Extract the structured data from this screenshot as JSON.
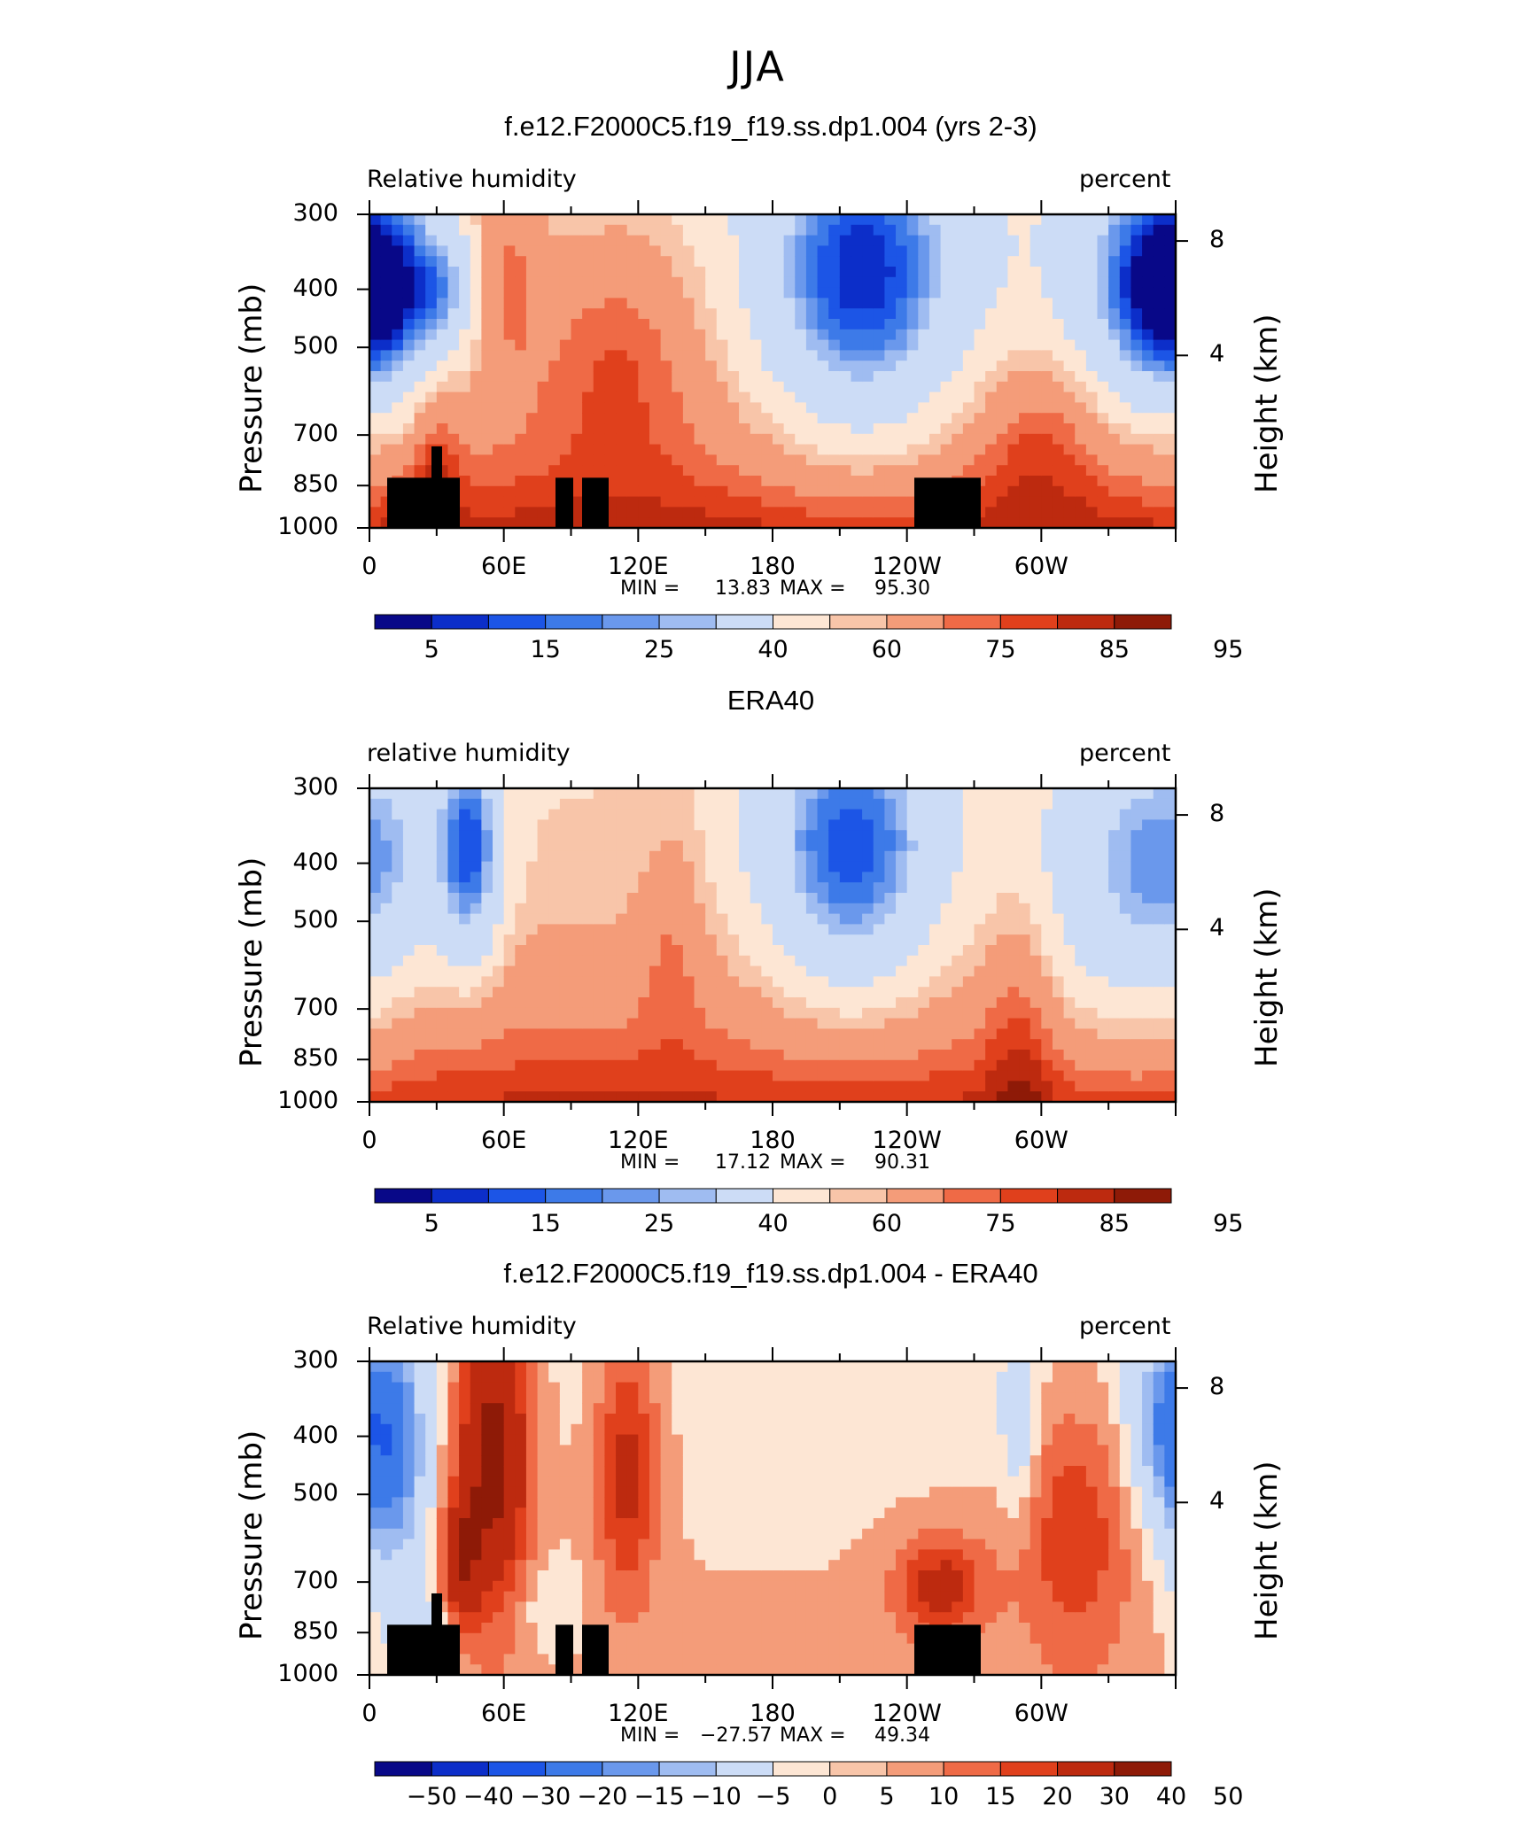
{
  "main_title": "JJA",
  "colors": {
    "rh_scale": [
      "#080888",
      "#0c2ec9",
      "#1c55e6",
      "#3d7ae8",
      "#6a98ec",
      "#9fbcf1",
      "#ccdcf6",
      "#fde6d4",
      "#f8c5a9",
      "#f49c79",
      "#ef6a46",
      "#e0401c",
      "#bd2a0f",
      "#8e1a07"
    ],
    "diff_scale": [
      "#080888",
      "#0c2ec9",
      "#1c55e6",
      "#3d7ae8",
      "#6a98ec",
      "#9fbcf1",
      "#ccdcf6",
      "#fde6d4",
      "#f8c5a9",
      "#f49c79",
      "#ef6a46",
      "#e0401c",
      "#bd2a0f",
      "#8e1a07"
    ],
    "land": "#000000"
  },
  "chart_data": [
    {
      "type": "heatmap",
      "title": "f.e12.F2000C5.f19_f19.ss.dp1.004 (yrs 2-3)",
      "left_label": "Relative  humidity",
      "right_label": "percent",
      "ylabel": "Pressure  (mb)",
      "ylabel_right": "Height  (km)",
      "yticks": [
        "300",
        "400",
        "500",
        "700",
        "850",
        "1000"
      ],
      "yticks_right": [
        "8",
        "4"
      ],
      "xticks": [
        "0",
        "60E",
        "120E",
        "180",
        "120W",
        "60W"
      ],
      "stats": {
        "min_label": "MIN  =",
        "min": "13.83",
        "max_label": "MAX  =",
        "max": "95.30"
      },
      "colorbar_labels": [
        "5",
        "15",
        "25",
        "40",
        "60",
        "75",
        "85",
        "95"
      ],
      "anomalies": [
        {
          "lon": 5,
          "p": 0.25,
          "sx": 18,
          "sy": 0.2,
          "amp": -38
        },
        {
          "lon": 35,
          "p": 0.25,
          "sx": 10,
          "sy": 0.12,
          "amp": -20
        },
        {
          "lon": 60,
          "p": 0.15,
          "sx": 12,
          "sy": 0.25,
          "amp": 18
        },
        {
          "lon": 110,
          "p": 0.4,
          "sx": 30,
          "sy": 0.3,
          "amp": 20
        },
        {
          "lon": 220,
          "p": 0.2,
          "sx": 30,
          "sy": 0.35,
          "amp": -50
        },
        {
          "lon": 350,
          "p": 0.22,
          "sx": 25,
          "sy": 0.28,
          "amp": -40
        },
        {
          "lon": 300,
          "p": 0.7,
          "sx": 20,
          "sy": 0.2,
          "amp": 12
        },
        {
          "lon": 30,
          "p": 0.8,
          "sx": 8,
          "sy": 0.25,
          "amp": 12
        }
      ],
      "base": {
        "top": 55,
        "bottom": 87,
        "curve": 2.2
      },
      "land": true
    },
    {
      "type": "heatmap",
      "title": "ERA40",
      "left_label": "relative  humidity",
      "right_label": "percent",
      "ylabel": "Pressure  (mb)",
      "ylabel_right": "Height  (km)",
      "yticks": [
        "300",
        "400",
        "500",
        "700",
        "850",
        "1000"
      ],
      "yticks_right": [
        "8",
        "4"
      ],
      "xticks": [
        "0",
        "60E",
        "120E",
        "180",
        "120W",
        "60W"
      ],
      "stats": {
        "min_label": "MIN  =",
        "min": "17.12",
        "max_label": "MAX  =",
        "max": "90.31"
      },
      "colorbar_labels": [
        "5",
        "15",
        "25",
        "40",
        "60",
        "75",
        "85",
        "95"
      ],
      "anomalies": [
        {
          "lon": 45,
          "p": 0.2,
          "sx": 10,
          "sy": 0.25,
          "amp": -45
        },
        {
          "lon": 10,
          "p": 0.2,
          "sx": 20,
          "sy": 0.25,
          "amp": -18
        },
        {
          "lon": 215,
          "p": 0.2,
          "sx": 28,
          "sy": 0.32,
          "amp": -50
        },
        {
          "lon": 340,
          "p": 0.3,
          "sx": 28,
          "sy": 0.35,
          "amp": -32
        },
        {
          "lon": 135,
          "p": 0.45,
          "sx": 10,
          "sy": 0.25,
          "amp": 10
        },
        {
          "lon": 290,
          "p": 0.8,
          "sx": 10,
          "sy": 0.35,
          "amp": 10
        }
      ],
      "base": {
        "top": 60,
        "bottom": 86,
        "curve": 2.0
      },
      "land": false
    },
    {
      "type": "heatmap",
      "title": "f.e12.F2000C5.f19_f19.ss.dp1.004 - ERA40",
      "left_label": "Relative  humidity",
      "right_label": "percent",
      "ylabel": "Pressure  (mb)",
      "ylabel_right": "Height  (km)",
      "yticks": [
        "300",
        "400",
        "500",
        "700",
        "850",
        "1000"
      ],
      "yticks_right": [
        "8",
        "4"
      ],
      "xticks": [
        "0",
        "60E",
        "120E",
        "180",
        "120W",
        "60W"
      ],
      "stats": {
        "min_label": "MIN  =",
        "min": "−27.57",
        "max_label": "MAX  =",
        "max": "49.34"
      },
      "colorbar_labels": [
        "−50",
        "−40",
        "−30",
        "−20",
        "−15",
        "−10",
        "−5",
        "0",
        "5",
        "10",
        "15",
        "20",
        "30",
        "40",
        "50"
      ],
      "anomalies": [
        {
          "lon": 10,
          "p": 0.3,
          "sx": 12,
          "sy": 0.3,
          "amp": -25
        },
        {
          "lon": 55,
          "p": 0.3,
          "sx": 12,
          "sy": 0.35,
          "amp": 30
        },
        {
          "lon": 40,
          "p": 0.65,
          "sx": 6,
          "sy": 0.15,
          "amp": 20
        },
        {
          "lon": 115,
          "p": 0.35,
          "sx": 10,
          "sy": 0.3,
          "amp": 18
        },
        {
          "lon": 255,
          "p": 0.72,
          "sx": 15,
          "sy": 0.12,
          "amp": 18
        },
        {
          "lon": 315,
          "p": 0.55,
          "sx": 18,
          "sy": 0.3,
          "amp": 14
        },
        {
          "lon": 355,
          "p": 0.2,
          "sx": 12,
          "sy": 0.2,
          "amp": -18
        },
        {
          "lon": 290,
          "p": 0.2,
          "sx": 6,
          "sy": 0.2,
          "amp": -12
        },
        {
          "lon": 25,
          "p": 0.9,
          "sx": 10,
          "sy": 0.1,
          "amp": -12
        },
        {
          "lon": 80,
          "p": 0.78,
          "sx": 10,
          "sy": 0.1,
          "amp": -6
        }
      ],
      "base": {
        "top": 3,
        "bottom": 6,
        "curve": 1.0
      },
      "land": true
    }
  ]
}
